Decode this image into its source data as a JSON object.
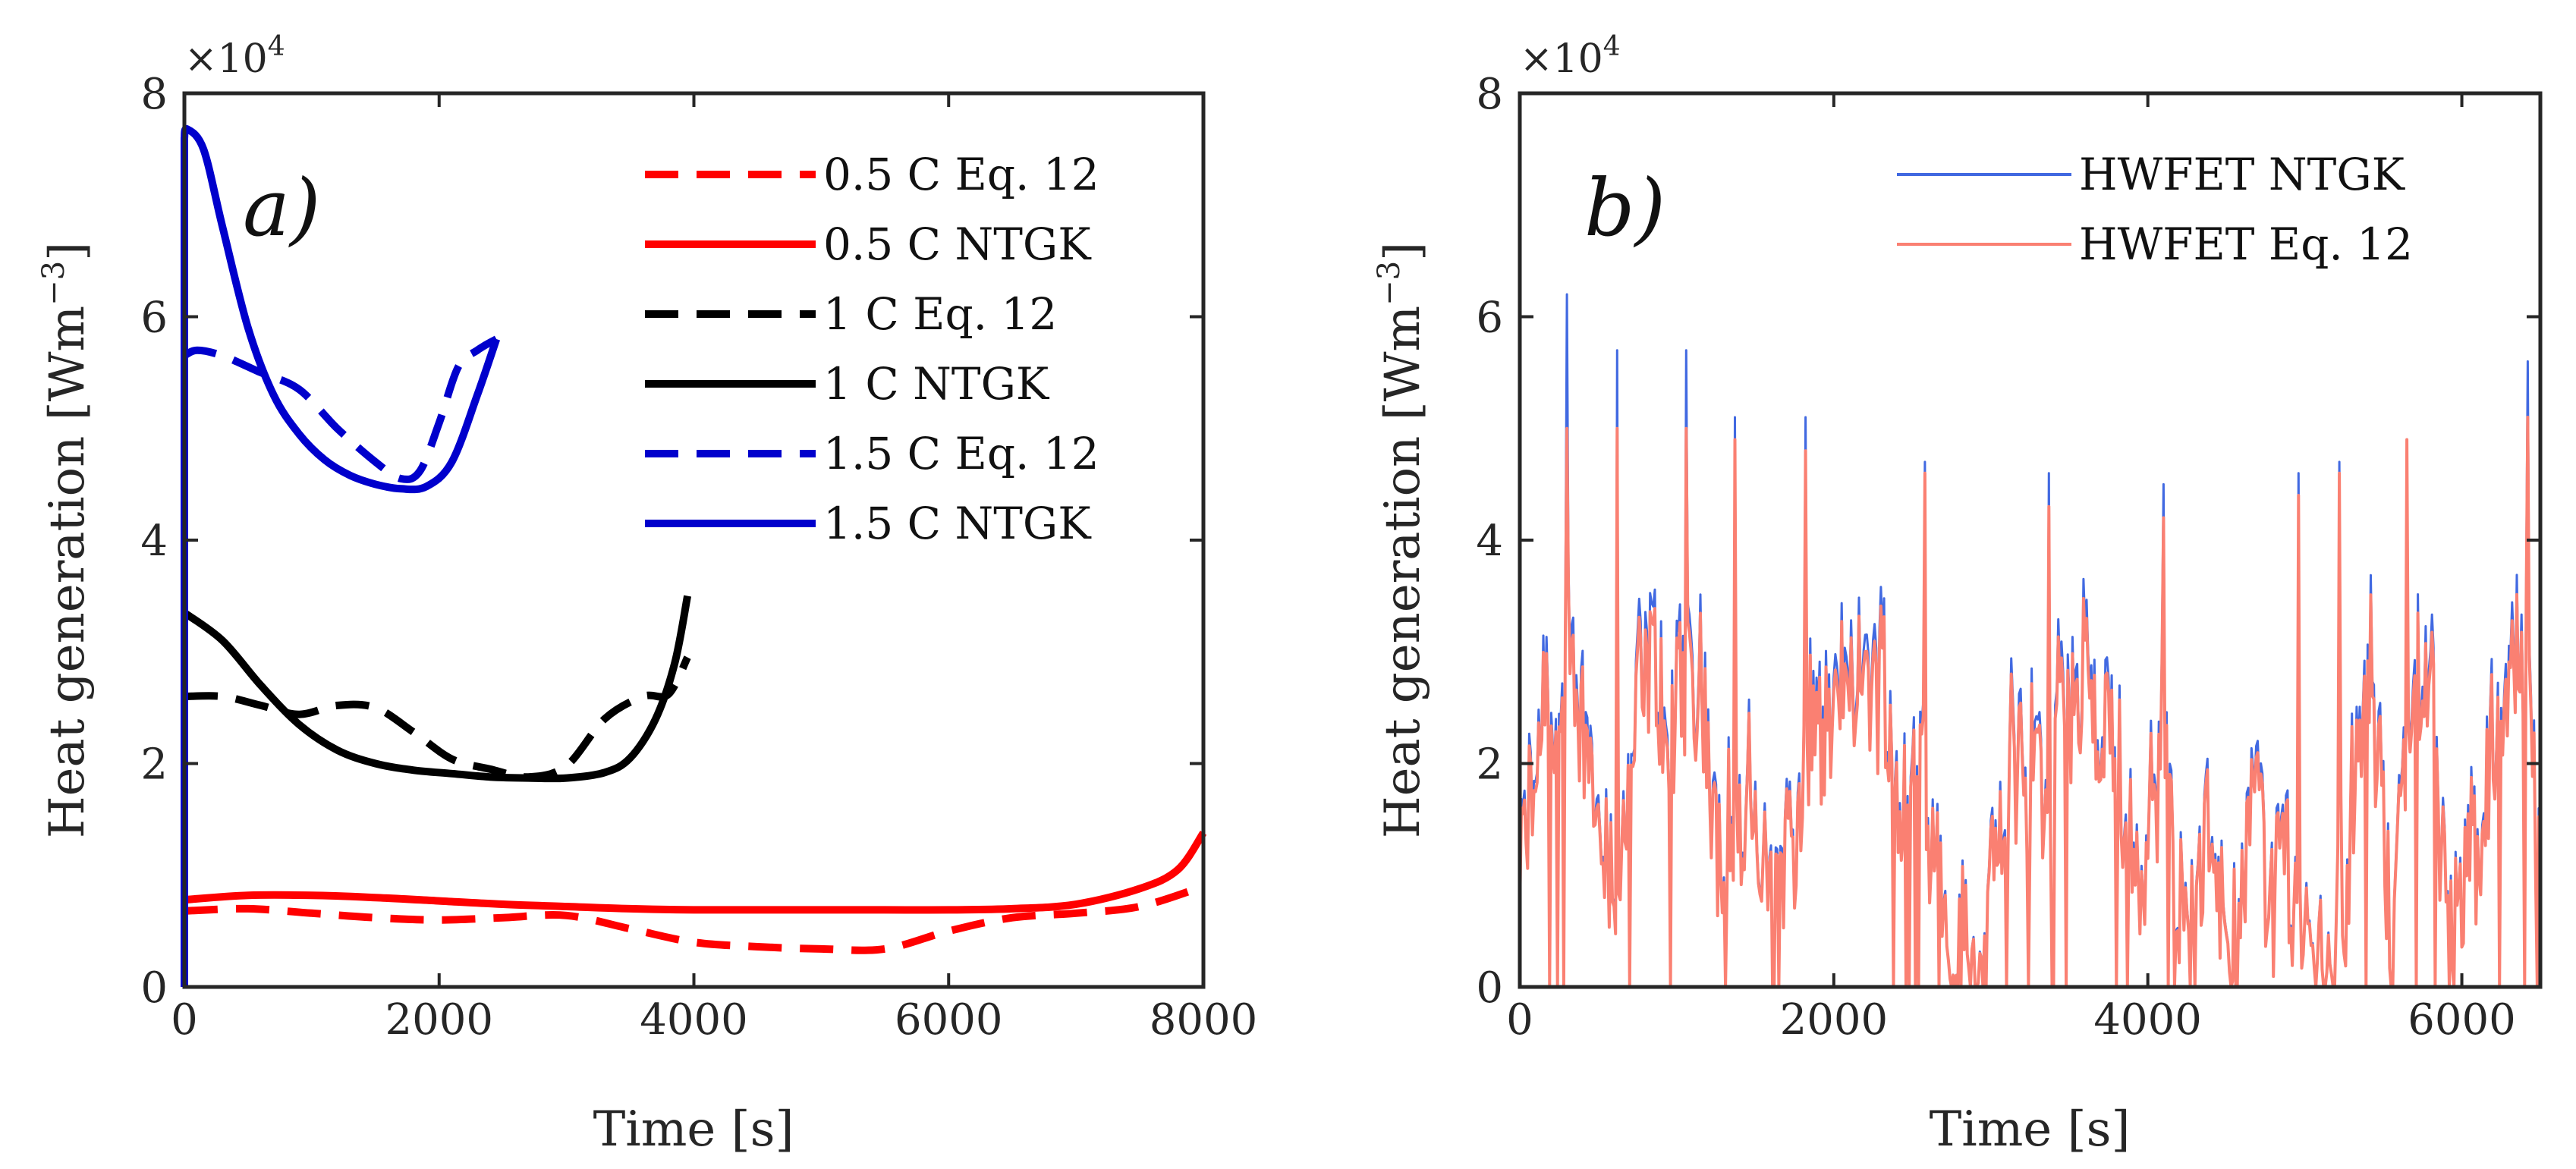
{
  "chart_data": [
    {
      "panel": "a",
      "type": "line",
      "panel_label": "a)",
      "xlabel": "Time [s]",
      "ylabel": "Heat generation [Wm",
      "ylabel_exp": "−3",
      "ylabel_close": "]",
      "multiplier_base": "×10",
      "multiplier_exp": "4",
      "xlim": [
        0,
        8000
      ],
      "ylim": [
        0,
        8
      ],
      "xticks": [
        "0",
        "2000",
        "4000",
        "6000",
        "8000"
      ],
      "yticks": [
        "0",
        "2",
        "4",
        "6",
        "8"
      ],
      "legend_position": "top-right",
      "series": [
        {
          "name": "0.5 C Eq. 12",
          "color": "#ff0000",
          "dash": true,
          "x": [
            0,
            500,
            1000,
            1500,
            2000,
            2500,
            3000,
            3500,
            4000,
            4500,
            5000,
            5500,
            6000,
            6500,
            7000,
            7500,
            8000
          ],
          "y": [
            0.68,
            0.7,
            0.66,
            0.62,
            0.6,
            0.62,
            0.64,
            0.52,
            0.4,
            0.36,
            0.34,
            0.34,
            0.5,
            0.62,
            0.66,
            0.72,
            0.9
          ]
        },
        {
          "name": "0.5 C NTGK",
          "color": "#ff0000",
          "dash": false,
          "x": [
            0,
            500,
            1000,
            1500,
            2000,
            2500,
            3000,
            3500,
            4000,
            4500,
            5000,
            5500,
            6000,
            6500,
            7000,
            7500,
            7800,
            8000
          ],
          "y": [
            0.78,
            0.82,
            0.82,
            0.8,
            0.77,
            0.74,
            0.72,
            0.7,
            0.69,
            0.69,
            0.69,
            0.69,
            0.69,
            0.7,
            0.74,
            0.88,
            1.05,
            1.38
          ]
        },
        {
          "name": "1 C Eq. 12",
          "color": "#000000",
          "dash": true,
          "x": [
            0,
            300,
            600,
            900,
            1200,
            1500,
            1800,
            2100,
            2400,
            2700,
            3000,
            3300,
            3600,
            3800,
            3950
          ],
          "y": [
            2.6,
            2.6,
            2.52,
            2.44,
            2.52,
            2.5,
            2.28,
            2.04,
            1.95,
            1.88,
            1.98,
            2.4,
            2.6,
            2.62,
            2.95
          ]
        },
        {
          "name": "1 C NTGK",
          "color": "#000000",
          "dash": false,
          "x": [
            0,
            300,
            600,
            900,
            1200,
            1500,
            1800,
            2100,
            2400,
            2700,
            3000,
            3300,
            3500,
            3700,
            3850,
            3950
          ],
          "y": [
            3.35,
            3.1,
            2.7,
            2.35,
            2.12,
            2.0,
            1.94,
            1.91,
            1.88,
            1.87,
            1.87,
            1.92,
            2.05,
            2.4,
            2.9,
            3.5
          ]
        },
        {
          "name": "1.5 C Eq. 12",
          "color": "#0000cc",
          "dash": true,
          "x": [
            0,
            100,
            300,
            600,
            900,
            1200,
            1500,
            1700,
            1850,
            2000,
            2150,
            2300,
            2450
          ],
          "y": [
            5.65,
            5.7,
            5.65,
            5.5,
            5.35,
            5.0,
            4.7,
            4.55,
            4.62,
            5.05,
            5.55,
            5.7,
            5.8
          ]
        },
        {
          "name": "1.5 C NTGK",
          "color": "#0000cc",
          "dash": false,
          "x": [
            0,
            0,
            20,
            150,
            300,
            500,
            700,
            900,
            1100,
            1300,
            1500,
            1700,
            1900,
            2100,
            2300,
            2450
          ],
          "y": [
            0.0,
            7.6,
            7.68,
            7.5,
            6.8,
            5.9,
            5.3,
            4.95,
            4.72,
            4.58,
            4.5,
            4.46,
            4.48,
            4.7,
            5.3,
            5.8
          ]
        }
      ]
    },
    {
      "panel": "b",
      "type": "line",
      "panel_label": "b)",
      "xlabel": "Time [s]",
      "ylabel": "Heat generation [Wm",
      "ylabel_exp": "−3",
      "ylabel_close": "]",
      "multiplier_base": "×10",
      "multiplier_exp": "4",
      "xlim": [
        0,
        6500
      ],
      "ylim": [
        0,
        8
      ],
      "xticks": [
        "0",
        "2000",
        "4000",
        "6000"
      ],
      "yticks": [
        "0",
        "2",
        "4",
        "6",
        "8"
      ],
      "legend_position": "top-right",
      "series": [
        {
          "name": "HWFET NTGK",
          "color": "#4169e1",
          "sample_interval_s": 10,
          "peaks_t": [
            300,
            620,
            1060,
            1370,
            1820,
            2580,
            3370,
            4100,
            4960,
            5220,
            5650,
            6420
          ],
          "peaks_v": [
            6.2,
            5.7,
            5.7,
            5.1,
            5.1,
            4.7,
            4.6,
            4.5,
            4.6,
            4.7,
            4.9,
            5.6
          ]
        },
        {
          "name": "HWFET Eq. 12",
          "color": "#fa8072",
          "sample_interval_s": 10,
          "peaks_t": [
            300,
            620,
            1060,
            1370,
            1820,
            2580,
            3370,
            4100,
            4960,
            5220,
            5650,
            6420
          ],
          "peaks_v": [
            5.0,
            5.0,
            5.0,
            4.9,
            4.8,
            4.6,
            4.3,
            4.2,
            4.4,
            4.6,
            4.9,
            5.1
          ]
        }
      ]
    }
  ]
}
